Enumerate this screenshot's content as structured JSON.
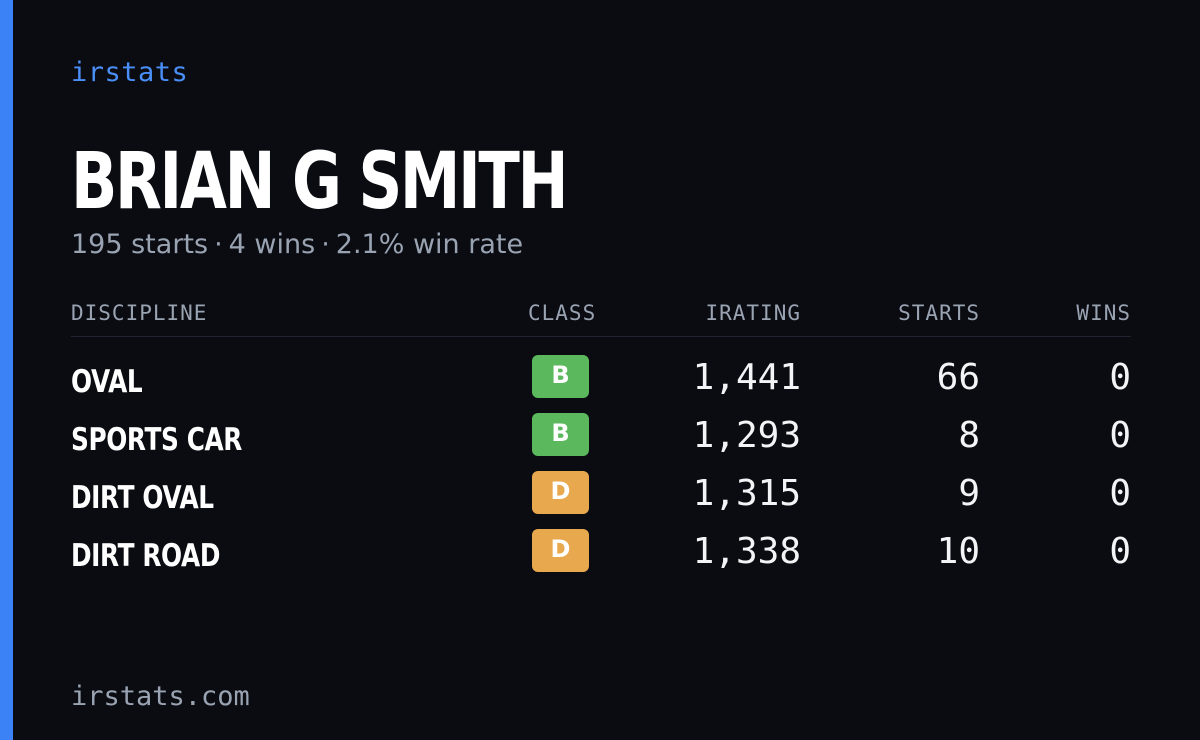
{
  "brand": "irstats",
  "player": {
    "name": "BRIAN G SMITH",
    "starts": "195 starts",
    "wins": "4 wins",
    "win_rate": "2.1% win rate",
    "separator": "·"
  },
  "table": {
    "headers": {
      "discipline": "DISCIPLINE",
      "class": "CLASS",
      "irating": "IRATING",
      "starts": "STARTS",
      "wins": "WINS"
    },
    "rows": [
      {
        "discipline": "OVAL",
        "class": "B",
        "class_color": "#5cb85c",
        "irating": "1,441",
        "starts": "66",
        "wins": "0"
      },
      {
        "discipline": "SPORTS CAR",
        "class": "B",
        "class_color": "#5cb85c",
        "irating": "1,293",
        "starts": "8",
        "wins": "0"
      },
      {
        "discipline": "DIRT OVAL",
        "class": "D",
        "class_color": "#e8a94e",
        "irating": "1,315",
        "starts": "9",
        "wins": "0"
      },
      {
        "discipline": "DIRT ROAD",
        "class": "D",
        "class_color": "#e8a94e",
        "irating": "1,338",
        "starts": "10",
        "wins": "0"
      }
    ]
  },
  "footer": "irstats.com",
  "colors": {
    "background": "#0a0c12",
    "accent": "#3b82f6",
    "brand_text": "#4a8ef7",
    "muted_text": "#9aa3b2",
    "class_b": "#5cb85c",
    "class_d": "#e8a94e"
  }
}
